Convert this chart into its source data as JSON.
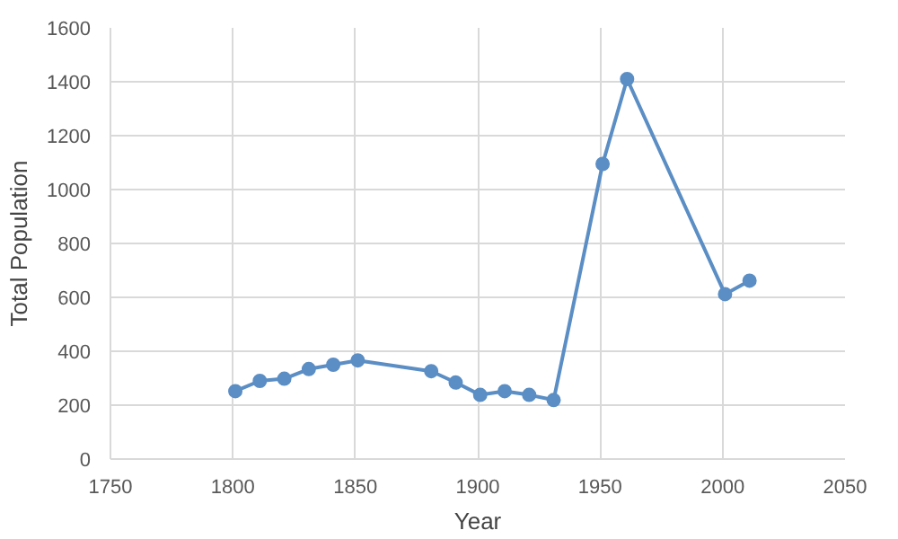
{
  "chart_data": {
    "type": "line",
    "xlabel": "Year",
    "ylabel": "Total Population",
    "series": [
      {
        "color": "#5b8ec4",
        "x": [
          1801,
          1811,
          1821,
          1831,
          1841,
          1851,
          1881,
          1891,
          1901,
          1911,
          1921,
          1931,
          1951,
          1961,
          2001,
          2011
        ],
        "values": [
          252,
          290,
          298,
          334,
          350,
          366,
          326,
          284,
          238,
          252,
          238,
          219,
          1095,
          1410,
          612,
          662
        ]
      }
    ],
    "xlim": [
      1750,
      2050
    ],
    "xticks": [
      1750,
      1800,
      1850,
      1900,
      1950,
      2000,
      2050
    ],
    "ylim": [
      0,
      1600
    ],
    "yticks": [
      0,
      200,
      400,
      600,
      800,
      1000,
      1200,
      1400,
      1600
    ],
    "grid": true,
    "marker": "circle",
    "line_style": "solid"
  }
}
